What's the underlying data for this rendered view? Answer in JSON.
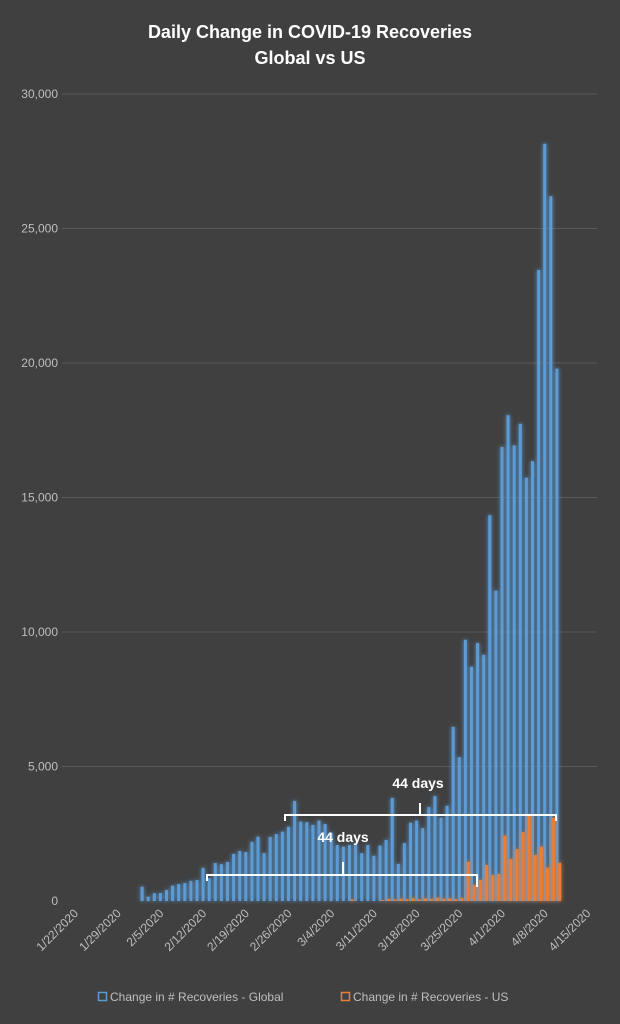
{
  "chart_data": {
    "type": "bar",
    "title": "Daily Change in COVID-19 Recoveries",
    "subtitle": "Global vs US",
    "xlabel": "",
    "ylabel": "",
    "ylim": [
      0,
      30000
    ],
    "y_ticks": [
      0,
      5000,
      10000,
      15000,
      20000,
      25000,
      30000
    ],
    "y_tick_labels": [
      "0",
      "5,000",
      "10,000",
      "15,000",
      "20,000",
      "25,000",
      "30,000"
    ],
    "grid": true,
    "legend_position": "bottom",
    "x_start": "1/22/2020",
    "x_end": "4/15/2020",
    "x_tick_labels": [
      "1/22/2020",
      "1/29/2020",
      "2/5/2020",
      "2/12/2020",
      "2/19/2020",
      "2/26/2020",
      "3/4/2020",
      "3/11/2020",
      "3/18/2020",
      "3/25/2020",
      "4/1/2020",
      "4/8/2020",
      "4/15/2020"
    ],
    "x_tick_every_days": 7,
    "series": [
      {
        "name": "Change in # Recoveries - Global",
        "color": "#5b9bd5",
        "values": [
          null,
          null,
          null,
          null,
          null,
          null,
          null,
          null,
          null,
          null,
          null,
          530,
          160,
          290,
          293,
          410,
          570,
          630,
          670,
          750,
          780,
          1230,
          850,
          1410,
          1370,
          1450,
          1750,
          1860,
          1820,
          2200,
          2390,
          1780,
          2380,
          2490,
          2580,
          2760,
          3720,
          2950,
          2930,
          2830,
          2990,
          2860,
          2540,
          2080,
          2020,
          2080,
          2150,
          1780,
          2080,
          1680,
          2060,
          2270,
          3830,
          1380,
          2150,
          2910,
          2990,
          2710,
          3490,
          3900,
          3100,
          3540,
          6470,
          5350,
          9710,
          8710,
          9590,
          9150,
          14340,
          11540,
          16880,
          18060,
          16940,
          17740,
          15740,
          16350,
          23460,
          28150,
          26200,
          19790,
          null,
          null,
          null,
          null,
          null
        ]
      },
      {
        "name": "Change in # Recoveries - US",
        "color": "#ed7d31",
        "values": [
          null,
          null,
          null,
          null,
          null,
          null,
          null,
          null,
          null,
          null,
          null,
          null,
          null,
          null,
          null,
          null,
          null,
          null,
          null,
          null,
          null,
          null,
          null,
          null,
          null,
          null,
          null,
          null,
          null,
          null,
          null,
          null,
          null,
          null,
          null,
          null,
          null,
          null,
          null,
          null,
          null,
          null,
          null,
          null,
          null,
          60,
          null,
          null,
          null,
          null,
          40,
          80,
          60,
          90,
          70,
          110,
          60,
          100,
          80,
          120,
          90,
          100,
          70,
          110,
          1460,
          600,
          780,
          1340,
          970,
          1000,
          2430,
          1560,
          1930,
          2560,
          3160,
          1710,
          2020,
          1240,
          3090,
          1420,
          null,
          null,
          null,
          null,
          null
        ]
      }
    ],
    "annotations": [
      {
        "label": "44 days",
        "from": "2/12/2020",
        "to": "3/27/2020"
      },
      {
        "label": "44 days",
        "from": "2/25/2020",
        "to": "4/9/2020"
      }
    ]
  }
}
